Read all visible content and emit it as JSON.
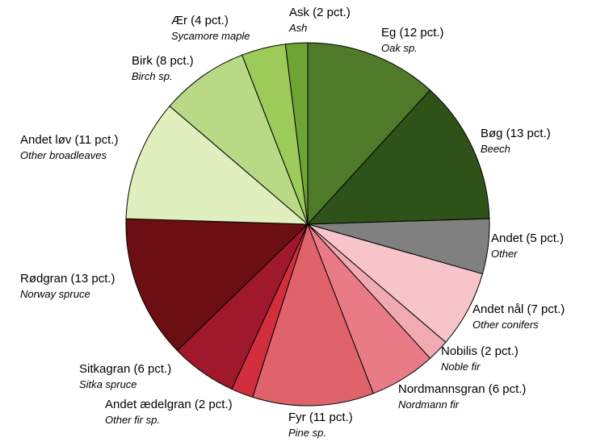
{
  "chart_data": {
    "type": "pie",
    "values": [
      12,
      13,
      5,
      7,
      2,
      6,
      11,
      2,
      6,
      13,
      11,
      8,
      4,
      2
    ],
    "value_labels": [
      "Eg (12 pct.)",
      "Bøg (13 pct.)",
      "Andet (5 pct.)",
      "Andet nål (7 pct.)",
      "Nobilis (2 pct.)",
      "Nordmannsgran (6 pct.)",
      "Fyr (11 pct.)",
      "Andet ædelgran (2 pct.)",
      "Sitkagran (6 pct.)",
      "Rødgran (13 pct.)",
      "Andet løv (11 pct.)",
      "Birk (8 pct.)",
      "Ær (4 pct.)",
      "Ask (2 pct.)"
    ],
    "translations": [
      "Oak sp.",
      "Beech",
      "Other",
      "Other conifers",
      "Noble fir",
      "Nordmann fir",
      "Pine sp.",
      "Other fir sp.",
      "Sitka spruce",
      "Norway spruce",
      "Other broadleaves",
      "Birch sp.",
      "Sycamore maple",
      "Ash"
    ],
    "colors": [
      "#4e7a2a",
      "#2f5219",
      "#808080",
      "#f7c5c9",
      "#f2aab2",
      "#e87b86",
      "#e0636b",
      "#d22e3e",
      "#a0182c",
      "#6b0f12",
      "#e0efbd",
      "#b8da87",
      "#9ccb5a",
      "#6ea434"
    ]
  }
}
